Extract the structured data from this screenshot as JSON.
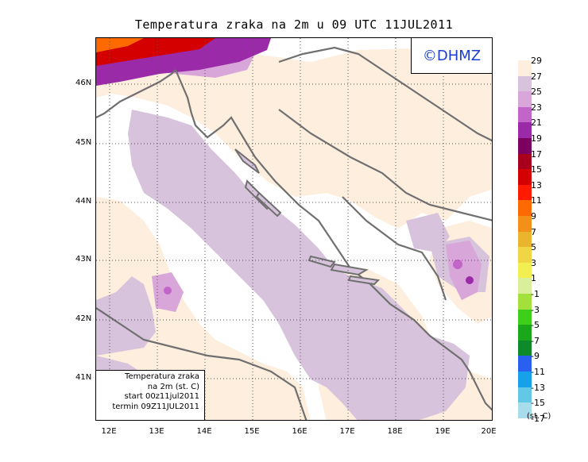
{
  "title": "Temperatura zraka na 2m u 09 UTC 11JUL2011",
  "credit": "©DHMZ",
  "infobox": {
    "line1": "Temperatura zraka",
    "line2": "na 2m (st. C)",
    "line3": "start 00z11jul2011",
    "line4": "termin 09Z11JUL2011"
  },
  "lat_labels": [
    "46N",
    "45N",
    "44N",
    "43N",
    "42N",
    "41N"
  ],
  "lon_labels": [
    "12E",
    "13E",
    "14E",
    "15E",
    "16E",
    "17E",
    "18E",
    "19E",
    "20E"
  ],
  "legend": {
    "unit": "(st. C)",
    "labels": [
      "29",
      "27",
      "25",
      "23",
      "21",
      "19",
      "17",
      "15",
      "13",
      "11",
      "9",
      "7",
      "5",
      "3",
      "1",
      "-1",
      "-3",
      "-5",
      "-7",
      "-9",
      "-11",
      "-13",
      "-15",
      "-17"
    ],
    "colors": [
      "#fdeede",
      "#d8c3dc",
      "#d9a6d9",
      "#c265c9",
      "#9a2aa8",
      "#7c0060",
      "#a8001c",
      "#d40000",
      "#ff1a00",
      "#ff6a00",
      "#f2901a",
      "#ebb42e",
      "#f0d545",
      "#f2ef52",
      "#d9ef9c",
      "#a4e03c",
      "#3ecf1a",
      "#1aa81a",
      "#0d8a2a",
      "#2a60f0",
      "#18a0e8",
      "#62c8e6",
      "#a8dceb",
      "#e2f7f5"
    ]
  },
  "map_layers": {
    "land_color": "#fdeede",
    "warm_sea_color": "#d8c3dc",
    "hot_color": "#d9a6d9",
    "peak_colors": [
      "#c265c9",
      "#9a2aa8",
      "#d40000"
    ],
    "coast_color": "#707070",
    "grid": true
  }
}
